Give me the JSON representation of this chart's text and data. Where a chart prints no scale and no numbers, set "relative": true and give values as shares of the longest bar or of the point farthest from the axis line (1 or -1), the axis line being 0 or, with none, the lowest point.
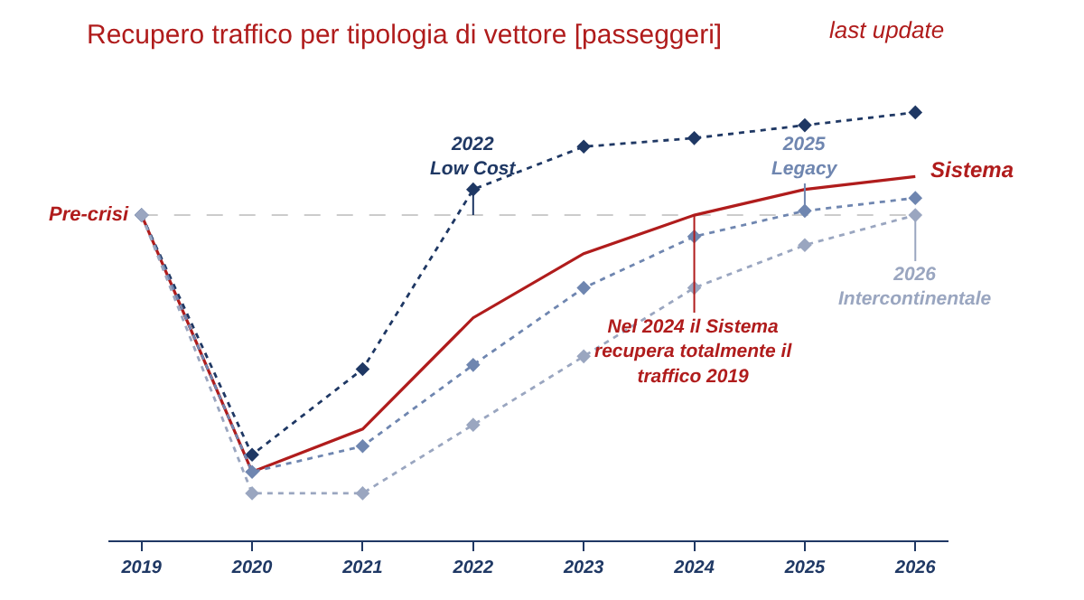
{
  "chart_data": {
    "type": "line",
    "title": "Recupero traffico per tipologia di vettore [passeggeri]",
    "relative": true,
    "legend": false,
    "grid": false,
    "categories": [
      "2019",
      "2020",
      "2021",
      "2022",
      "2023",
      "2024",
      "2025",
      "2026"
    ],
    "series": [
      {
        "name": "Sistema",
        "color": "#b01c1c",
        "line_style": "solid",
        "marker": "none",
        "values": [
          0.76,
          0.16,
          0.26,
          0.52,
          0.67,
          0.76,
          0.82,
          0.85
        ]
      },
      {
        "color": "#1f3864",
        "line_style": "dotted",
        "marker": "diamond",
        "values": [
          0.76,
          0.2,
          0.4,
          0.82,
          0.92,
          0.94,
          0.97,
          1.0
        ]
      },
      {
        "color": "#6f86b0",
        "line_style": "dotted",
        "marker": "diamond",
        "values": [
          0.76,
          0.16,
          0.22,
          0.41,
          0.59,
          0.71,
          0.77,
          0.8
        ]
      },
      {
        "color": "#9aa6c0",
        "line_style": "dotted",
        "marker": "diamond",
        "values": [
          0.76,
          0.11,
          0.11,
          0.27,
          0.43,
          0.59,
          0.69,
          0.76
        ]
      }
    ],
    "ref_lines": [
      {
        "axis": "y",
        "value": 0.76,
        "label": "Pre-crisi",
        "color": "#cccccc",
        "line_style": "dashed"
      }
    ],
    "annotations": [
      "last update",
      {
        "text": "2022\nLow Cost",
        "x": "2022",
        "y": 0.76
      },
      {
        "text": "2025\nLegacy",
        "x": "2025",
        "y": 0.76
      },
      {
        "text": "2026\nIntercontinentale",
        "x": "2026",
        "y": 0.76
      },
      {
        "text": "Nel 2024 il Sistema\nrecupera totalmente il\ntraffico 2019",
        "x": "2024",
        "y": 0.76
      }
    ]
  }
}
